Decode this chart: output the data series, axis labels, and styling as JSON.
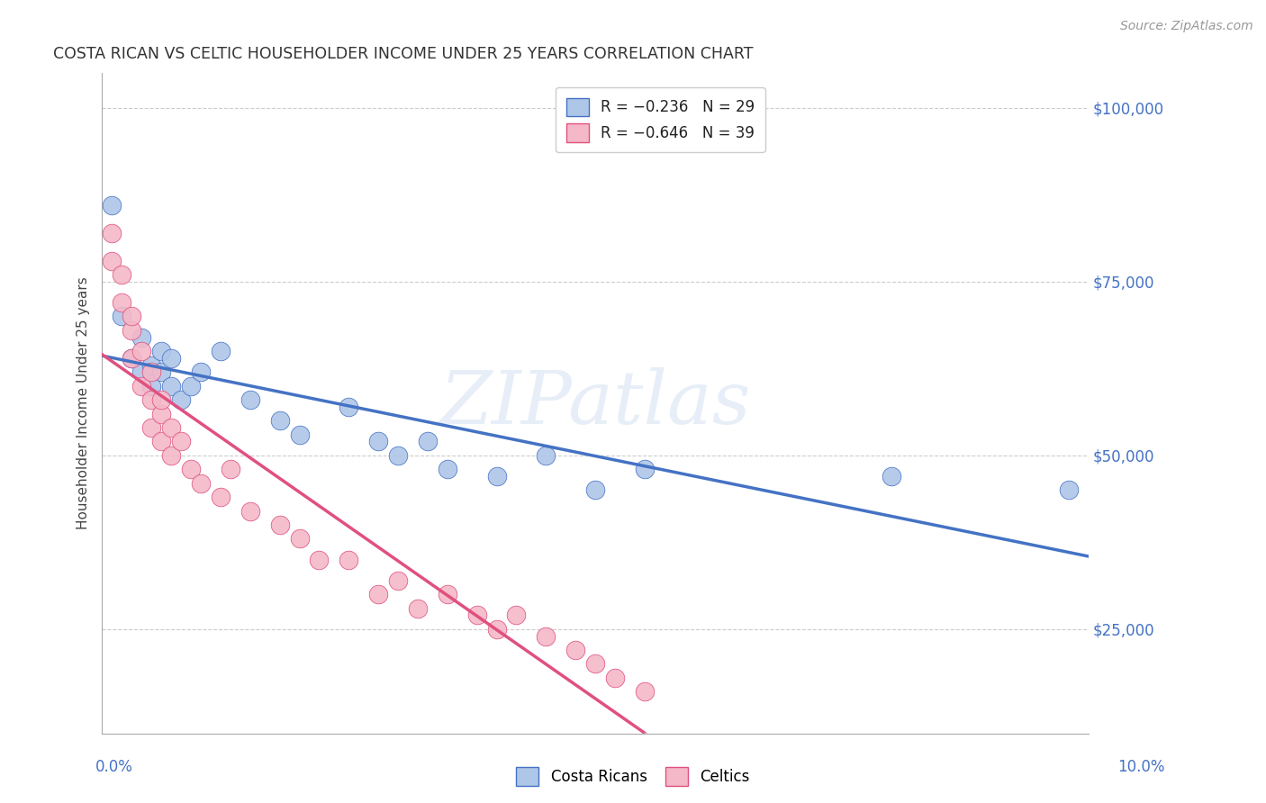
{
  "title": "COSTA RICAN VS CELTIC HOUSEHOLDER INCOME UNDER 25 YEARS CORRELATION CHART",
  "source": "Source: ZipAtlas.com",
  "ylabel": "Householder Income Under 25 years",
  "xlim": [
    0.0,
    0.1
  ],
  "ylim": [
    10000,
    105000
  ],
  "watermark": "ZIPatlas",
  "legend_r1": "R = −0.236   N = 29",
  "legend_r2": "R = −0.646   N = 39",
  "legend_label1": "Costa Ricans",
  "legend_label2": "Celtics",
  "color_cr": "#aec6e8",
  "color_cel": "#f4b8c8",
  "line_color_cr": "#4472c4",
  "line_color_cel": "#e05080",
  "grid_color": "#cccccc",
  "cr_x": [
    0.001,
    0.002,
    0.003,
    0.004,
    0.004,
    0.005,
    0.005,
    0.006,
    0.006,
    0.007,
    0.007,
    0.008,
    0.009,
    0.01,
    0.012,
    0.015,
    0.018,
    0.02,
    0.025,
    0.028,
    0.03,
    0.033,
    0.035,
    0.04,
    0.045,
    0.05,
    0.055,
    0.08,
    0.098
  ],
  "cr_y": [
    86000,
    70000,
    64000,
    62000,
    67000,
    60000,
    63000,
    62000,
    65000,
    60000,
    64000,
    58000,
    60000,
    62000,
    65000,
    58000,
    55000,
    53000,
    57000,
    52000,
    50000,
    52000,
    48000,
    47000,
    50000,
    45000,
    48000,
    47000,
    45000
  ],
  "cel_x": [
    0.001,
    0.001,
    0.002,
    0.002,
    0.003,
    0.003,
    0.003,
    0.004,
    0.004,
    0.005,
    0.005,
    0.005,
    0.006,
    0.006,
    0.006,
    0.007,
    0.007,
    0.008,
    0.009,
    0.01,
    0.012,
    0.013,
    0.015,
    0.018,
    0.02,
    0.022,
    0.025,
    0.028,
    0.03,
    0.032,
    0.035,
    0.038,
    0.04,
    0.042,
    0.045,
    0.048,
    0.05,
    0.052,
    0.055
  ],
  "cel_y": [
    78000,
    82000,
    76000,
    72000,
    68000,
    64000,
    70000,
    65000,
    60000,
    62000,
    58000,
    54000,
    56000,
    52000,
    58000,
    50000,
    54000,
    52000,
    48000,
    46000,
    44000,
    48000,
    42000,
    40000,
    38000,
    35000,
    35000,
    30000,
    32000,
    28000,
    30000,
    27000,
    25000,
    27000,
    24000,
    22000,
    20000,
    18000,
    16000
  ]
}
